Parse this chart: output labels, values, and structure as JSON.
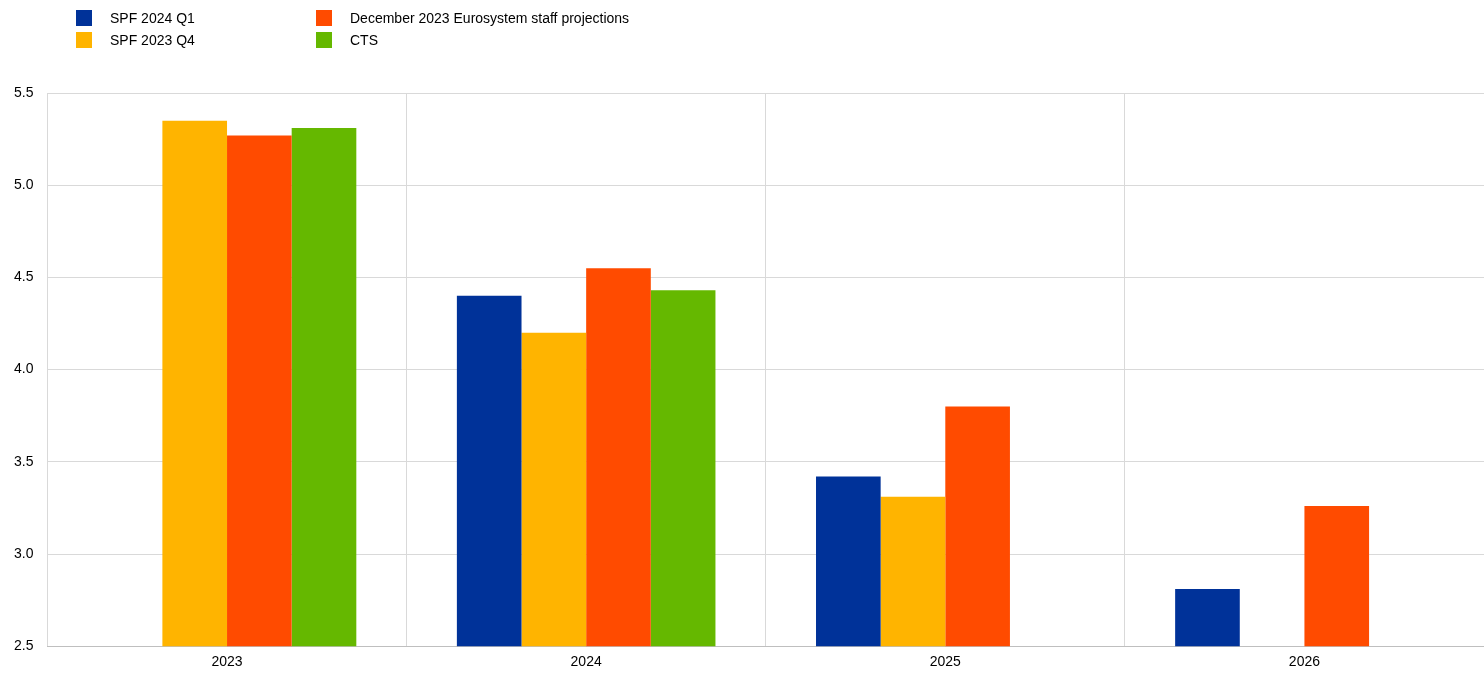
{
  "chart_data": {
    "type": "bar",
    "categories": [
      "2023",
      "2024",
      "2025",
      "2026"
    ],
    "series": [
      {
        "name": "SPF 2024 Q1",
        "color": "#003299",
        "values": [
          null,
          4.4,
          3.42,
          2.81
        ]
      },
      {
        "name": "SPF 2023 Q4",
        "color": "#ffb400",
        "values": [
          5.35,
          4.2,
          3.31,
          null
        ]
      },
      {
        "name": "December 2023 Eurosystem staff projections",
        "color": "#ff4b00",
        "values": [
          5.27,
          4.55,
          3.8,
          3.26
        ]
      },
      {
        "name": "CTS",
        "color": "#65b800",
        "values": [
          5.31,
          4.43,
          null,
          null
        ]
      }
    ],
    "ylim": [
      2.5,
      5.5
    ],
    "yticks": [
      {
        "value": 2.5,
        "label": "2.5"
      },
      {
        "value": 3,
        "label": "3.0"
      },
      {
        "value": 3.5,
        "label": "3.5"
      },
      {
        "value": 4,
        "label": "4.0"
      },
      {
        "value": 4.5,
        "label": "4.5"
      },
      {
        "value": 5,
        "label": "5.0"
      },
      {
        "value": 5.5,
        "label": "5.5"
      }
    ],
    "grid": true,
    "legend": "top left"
  }
}
